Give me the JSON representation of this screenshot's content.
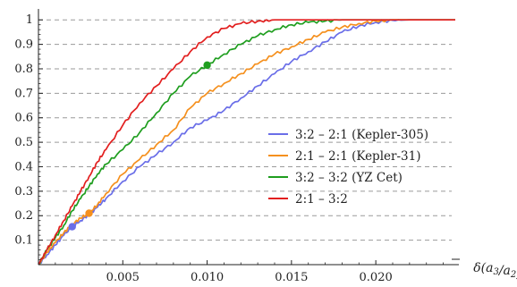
{
  "chart_data": {
    "type": "line",
    "title": "",
    "xlabel": "δ̄(a3/a2)",
    "xlabel_parts": {
      "delta": "δ",
      "paren_open": "(a",
      "sub1": "3",
      "slash": "/a",
      "sub2": "2",
      "paren_close": ")"
    },
    "ylabel": "",
    "xlim": [
      0,
      0.0245
    ],
    "ylim": [
      0,
      1.03
    ],
    "x_ticks": [
      0.005,
      0.01,
      0.015,
      0.02
    ],
    "x_tick_labels": [
      "0.005",
      "0.010",
      "0.015",
      "0.020"
    ],
    "y_ticks": [
      0.1,
      0.2,
      0.3,
      0.4,
      0.5,
      0.6,
      0.7,
      0.8,
      0.9,
      1
    ],
    "y_tick_labels": [
      "0.1",
      "0.2",
      "0.3",
      "0.4",
      "0.5",
      "0.6",
      "0.7",
      "0.8",
      "0.9",
      "1"
    ],
    "grid": "horizontal dashed at y ticks",
    "legend_position": "center-right",
    "series": [
      {
        "name": "3:2 – 2:1 (Kepler-305)",
        "color": "#6a6ee8",
        "x": [
          0,
          0.0005,
          0.001,
          0.0015,
          0.002,
          0.0025,
          0.003,
          0.0035,
          0.004,
          0.005,
          0.006,
          0.007,
          0.008,
          0.009,
          0.01,
          0.011,
          0.012,
          0.013,
          0.014,
          0.015,
          0.016,
          0.017,
          0.018,
          0.019,
          0.02,
          0.021,
          0.022,
          0.0238
        ],
        "y": [
          0,
          0.04,
          0.08,
          0.12,
          0.155,
          0.18,
          0.205,
          0.235,
          0.27,
          0.34,
          0.4,
          0.45,
          0.5,
          0.56,
          0.59,
          0.63,
          0.68,
          0.73,
          0.78,
          0.83,
          0.87,
          0.91,
          0.95,
          0.975,
          0.99,
          0.998,
          1.0,
          1.0
        ],
        "marker": {
          "x": 0.002,
          "y": 0.155
        }
      },
      {
        "name": "2:1 – 2:1 (Kepler-31)",
        "color": "#f5901e",
        "x": [
          0,
          0.0005,
          0.001,
          0.0015,
          0.002,
          0.0025,
          0.003,
          0.0035,
          0.004,
          0.005,
          0.006,
          0.007,
          0.008,
          0.009,
          0.01,
          0.011,
          0.012,
          0.013,
          0.014,
          0.015,
          0.016,
          0.017,
          0.018,
          0.019,
          0.02,
          0.021,
          0.022,
          0.0238
        ],
        "y": [
          0,
          0.05,
          0.09,
          0.13,
          0.165,
          0.19,
          0.21,
          0.245,
          0.29,
          0.37,
          0.43,
          0.49,
          0.55,
          0.64,
          0.7,
          0.74,
          0.78,
          0.82,
          0.86,
          0.89,
          0.92,
          0.95,
          0.97,
          0.985,
          0.995,
          1.0,
          1.0,
          1.0
        ],
        "marker": {
          "x": 0.003,
          "y": 0.21
        }
      },
      {
        "name": "3:2 – 3:2 (YZ Cet)",
        "color": "#1f9e1f",
        "x": [
          0,
          0.0005,
          0.001,
          0.0015,
          0.002,
          0.0025,
          0.003,
          0.0035,
          0.004,
          0.005,
          0.006,
          0.007,
          0.008,
          0.009,
          0.01,
          0.011,
          0.012,
          0.013,
          0.014,
          0.015,
          0.016,
          0.017,
          0.018,
          0.019,
          0.02,
          0.021,
          0.022,
          0.0238
        ],
        "y": [
          0,
          0.06,
          0.11,
          0.16,
          0.22,
          0.27,
          0.32,
          0.37,
          0.41,
          0.47,
          0.54,
          0.62,
          0.7,
          0.77,
          0.815,
          0.86,
          0.9,
          0.935,
          0.96,
          0.98,
          0.99,
          0.995,
          1.0,
          1.0,
          1.0,
          1.0,
          1.0,
          1.0
        ],
        "marker": {
          "x": 0.01,
          "y": 0.815
        }
      },
      {
        "name": "2:1 – 3:2",
        "color": "#e21f1f",
        "x": [
          0,
          0.0005,
          0.001,
          0.0015,
          0.002,
          0.0025,
          0.003,
          0.0035,
          0.004,
          0.005,
          0.006,
          0.007,
          0.008,
          0.009,
          0.01,
          0.011,
          0.012,
          0.013,
          0.014,
          0.015,
          0.016,
          0.017,
          0.018,
          0.019,
          0.02,
          0.021,
          0.022,
          0.0238
        ],
        "y": [
          0,
          0.06,
          0.12,
          0.18,
          0.24,
          0.3,
          0.36,
          0.42,
          0.47,
          0.57,
          0.66,
          0.73,
          0.8,
          0.87,
          0.93,
          0.965,
          0.985,
          0.995,
          1.0,
          1.0,
          1.0,
          1.0,
          1.0,
          1.0,
          1.0,
          1.0,
          1.0,
          1.0
        ]
      }
    ]
  }
}
